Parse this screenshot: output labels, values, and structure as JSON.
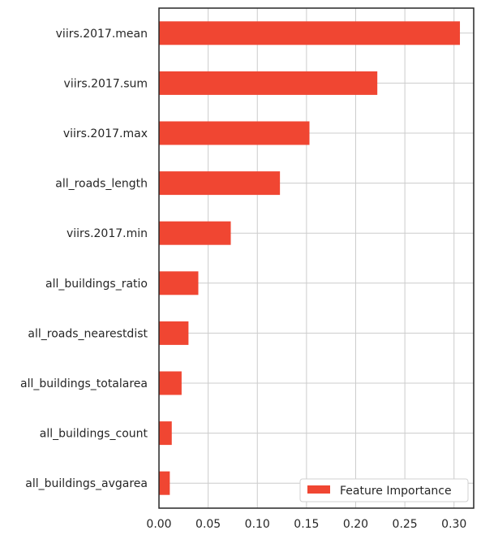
{
  "chart_data": {
    "type": "bar",
    "orientation": "horizontal",
    "categories": [
      "viirs.2017.mean",
      "viirs.2017.sum",
      "viirs.2017.max",
      "all_roads_length",
      "viirs.2017.min",
      "all_buildings_ratio",
      "all_roads_nearestdist",
      "all_buildings_totalarea",
      "all_buildings_count",
      "all_buildings_avgarea"
    ],
    "series": [
      {
        "name": "Feature Importance",
        "color": "#f04632",
        "values": [
          0.306,
          0.222,
          0.153,
          0.123,
          0.073,
          0.04,
          0.03,
          0.023,
          0.013,
          0.011
        ]
      }
    ],
    "xlim": [
      0,
      0.32
    ],
    "xticks": [
      0.0,
      0.05,
      0.1,
      0.15,
      0.2,
      0.25,
      0.3
    ],
    "xtick_labels": [
      "0.00",
      "0.05",
      "0.10",
      "0.15",
      "0.20",
      "0.25",
      "0.30"
    ],
    "grid": true,
    "legend_position": "lower-right"
  }
}
